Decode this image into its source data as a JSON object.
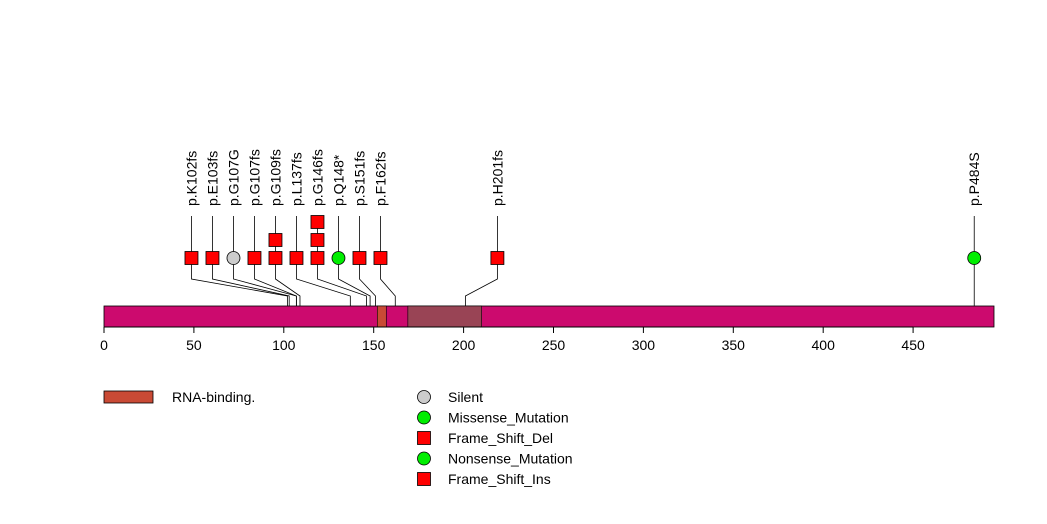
{
  "chart_data": {
    "type": "lollipop",
    "title": "",
    "xlabel": "",
    "ylabel": "",
    "protein_length": 495,
    "x_range": [
      0,
      495
    ],
    "x_ticks": [
      0,
      50,
      100,
      150,
      200,
      250,
      300,
      350,
      400,
      450
    ],
    "protein_color": "#cc0a6e",
    "domains": [
      {
        "name": "RNA-binding.",
        "start": 152,
        "end": 157,
        "color": "#c94a35"
      },
      {
        "name": "",
        "start": 169,
        "end": 210,
        "color": "#994455"
      }
    ],
    "mutations": [
      {
        "label": "p.K102fs",
        "position": 102,
        "count": 1,
        "type": "Frame_Shift_Del"
      },
      {
        "label": "p.E103fs",
        "position": 103,
        "count": 1,
        "type": "Frame_Shift_Del"
      },
      {
        "label": "p.G107G",
        "position": 107,
        "count": 1,
        "type": "Silent"
      },
      {
        "label": "p.G107fs",
        "position": 107,
        "count": 1,
        "type": "Frame_Shift_Del"
      },
      {
        "label": "p.G109fs",
        "position": 109,
        "count": 2,
        "type": "Frame_Shift_Del"
      },
      {
        "label": "p.L137fs",
        "position": 137,
        "count": 1,
        "type": "Frame_Shift_Del"
      },
      {
        "label": "p.G146fs",
        "position": 146,
        "count": 3,
        "type": "Frame_Shift_Del"
      },
      {
        "label": "p.Q148*",
        "position": 148,
        "count": 1,
        "type": "Nonsense_Mutation"
      },
      {
        "label": "p.S151fs",
        "position": 151,
        "count": 1,
        "type": "Frame_Shift_Del"
      },
      {
        "label": "p.F162fs",
        "position": 162,
        "count": 1,
        "type": "Frame_Shift_Del"
      },
      {
        "label": "p.H201fs",
        "position": 201,
        "count": 1,
        "type": "Frame_Shift_Del"
      },
      {
        "label": "p.P484S",
        "position": 484,
        "count": 1,
        "type": "Missense_Mutation"
      }
    ],
    "legend_domains": [
      {
        "label": "RNA-binding.",
        "color": "#c94a35"
      }
    ],
    "legend_mutations": [
      {
        "label": "Silent",
        "shape": "circle",
        "color": "#cccccc"
      },
      {
        "label": "Missense_Mutation",
        "shape": "circle",
        "color": "#00ee00"
      },
      {
        "label": "Frame_Shift_Del",
        "shape": "square",
        "color": "#ff0000"
      },
      {
        "label": "Nonsense_Mutation",
        "shape": "circle",
        "color": "#00ee00"
      },
      {
        "label": "Frame_Shift_Ins",
        "shape": "square",
        "color": "#ff0000"
      }
    ]
  }
}
